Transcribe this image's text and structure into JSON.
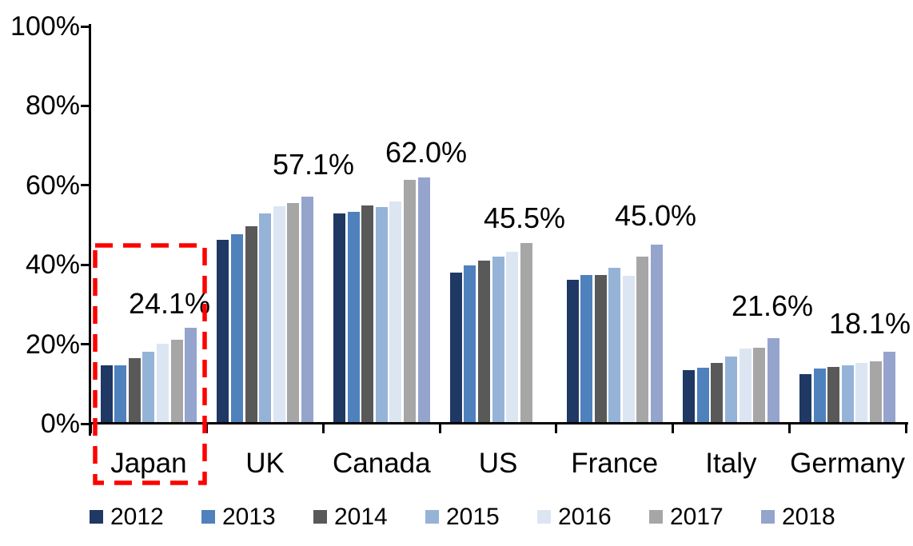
{
  "chart_data": {
    "type": "bar",
    "title": "",
    "categories": [
      "Japan",
      "UK",
      "Canada",
      "US",
      "France",
      "Italy",
      "Germany"
    ],
    "series": [
      {
        "name": "2012",
        "color": "#1F3864",
        "values": [
          14.7,
          46.2,
          53.0,
          38.0,
          36.3,
          13.4,
          12.5
        ]
      },
      {
        "name": "2013",
        "color": "#4F81BD",
        "values": [
          14.7,
          47.6,
          53.3,
          39.8,
          37.5,
          14.1,
          13.9
        ]
      },
      {
        "name": "2014",
        "color": "#595959",
        "values": [
          16.5,
          49.7,
          55.0,
          41.0,
          37.5,
          15.3,
          14.2
        ]
      },
      {
        "name": "2015",
        "color": "#95B3D7",
        "values": [
          18.1,
          52.9,
          54.5,
          42.0,
          39.3,
          16.9,
          14.7
        ]
      },
      {
        "name": "2016",
        "color": "#DCE6F2",
        "values": [
          20.1,
          54.7,
          56.0,
          43.3,
          37.3,
          18.9,
          15.3
        ]
      },
      {
        "name": "2017",
        "color": "#A6A6A6",
        "values": [
          21.2,
          55.6,
          61.4,
          45.5,
          42.1,
          19.1,
          15.8
        ]
      },
      {
        "name": "2018",
        "color": "#95A4CD",
        "values": [
          24.1,
          57.1,
          62.0,
          null,
          45.0,
          21.6,
          18.1
        ]
      }
    ],
    "data_labels": [
      "24.1%",
      "57.1%",
      "62.0%",
      "45.5%",
      "45.0%",
      "21.6%",
      "18.1%"
    ],
    "y_axis": {
      "tick_labels": [
        "0%",
        "20%",
        "40%",
        "60%",
        "80%",
        "100%"
      ],
      "min": 0,
      "max": 100,
      "grid": false
    },
    "legend": {
      "position": "bottom",
      "entries": [
        "2012",
        "2013",
        "2014",
        "2015",
        "2016",
        "2017",
        "2018"
      ]
    },
    "annotations": {
      "highlight_box_category": "Japan",
      "highlight_color": "#FF0000"
    },
    "axis_color": "#000000",
    "background_color": "#FFFFFF"
  }
}
